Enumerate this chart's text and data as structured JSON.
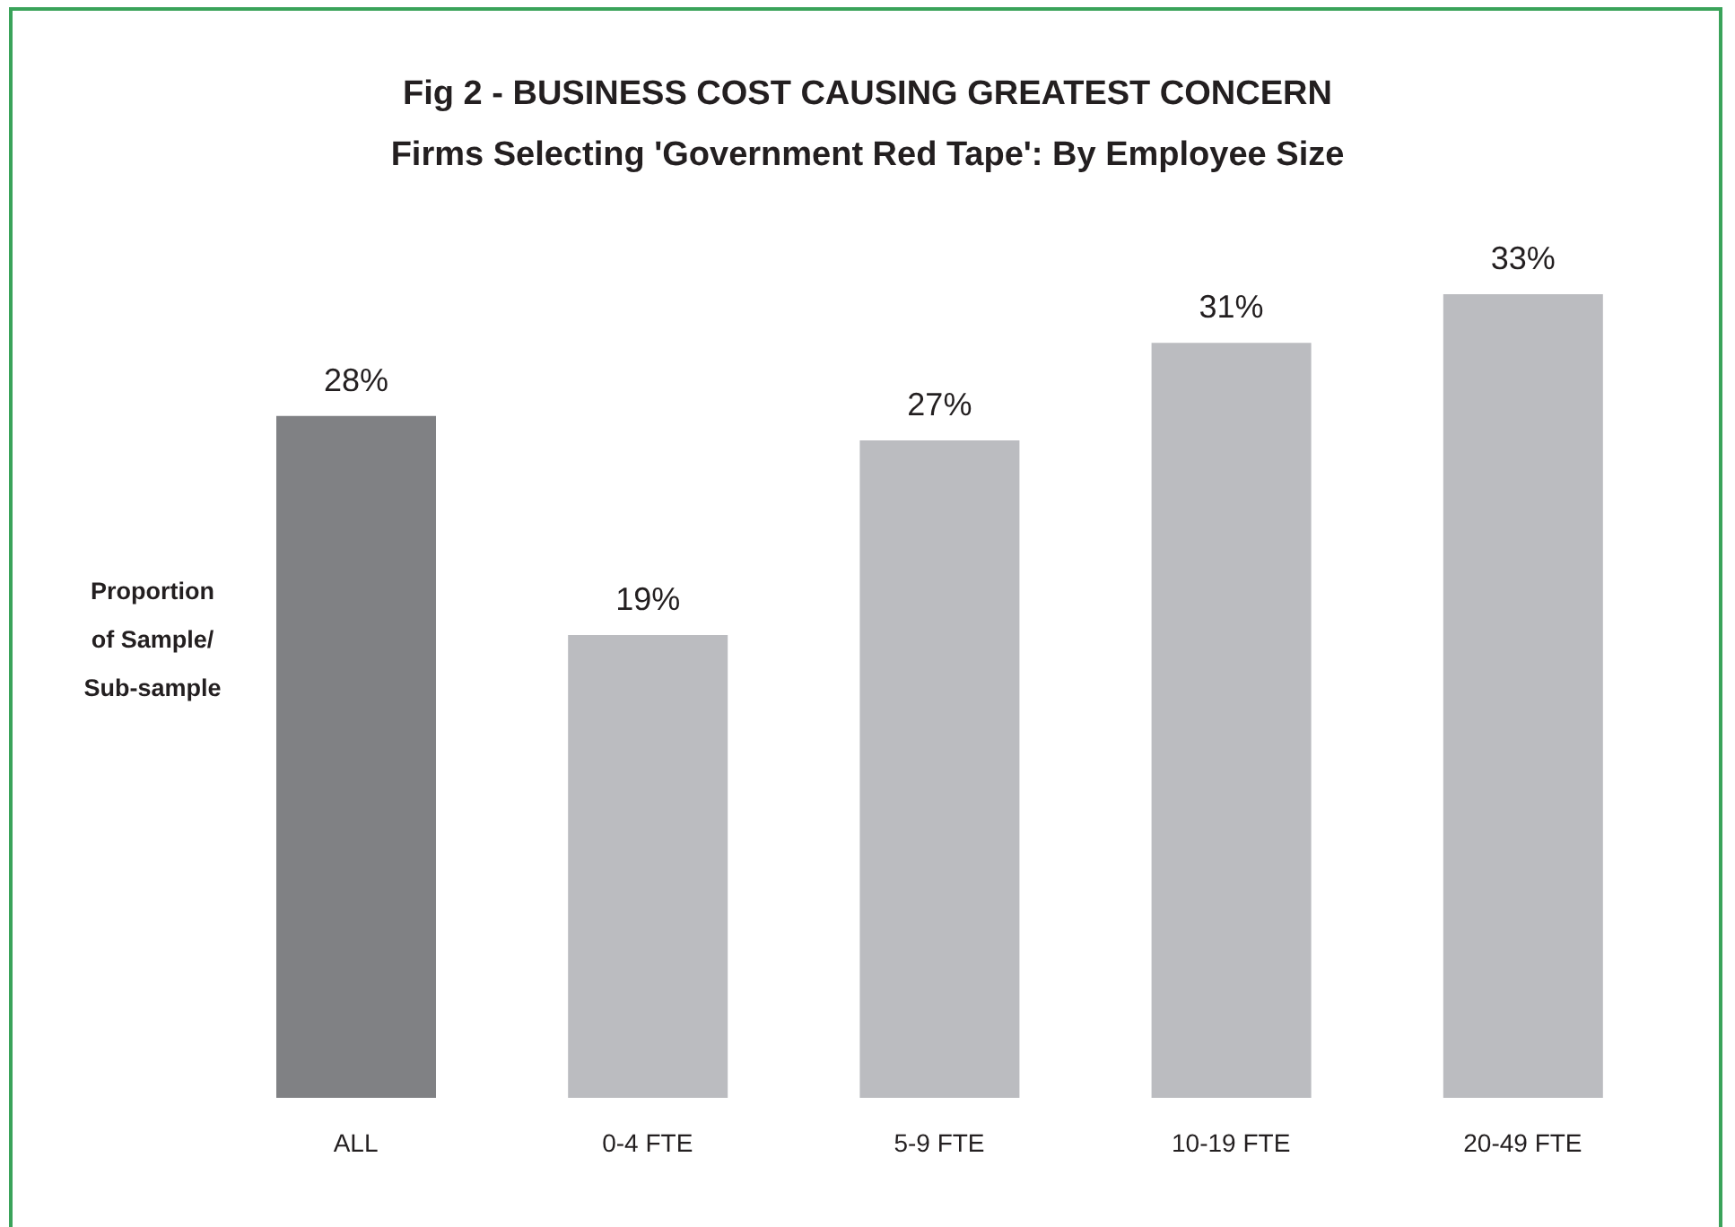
{
  "chart_data": {
    "type": "bar",
    "title": "Fig 2 - BUSINESS COST CAUSING GREATEST CONCERN",
    "subtitle": "Firms Selecting 'Government Red Tape': By Employee Size",
    "ylabel": "Proportion of Sample/ Sub-sample",
    "categories": [
      "ALL",
      "0-4 FTE",
      "5-9 FTE",
      "10-19 FTE",
      "20-49 FTE"
    ],
    "values": [
      28,
      19,
      27,
      31,
      33
    ],
    "colors": [
      "#808184",
      "#bbbcc0",
      "#bbbcc0",
      "#bbbcc0",
      "#bbbcc0"
    ],
    "value_labels": [
      "28%",
      "19%",
      "27%",
      "31%",
      "33%"
    ],
    "tick_labels": "x"
  }
}
